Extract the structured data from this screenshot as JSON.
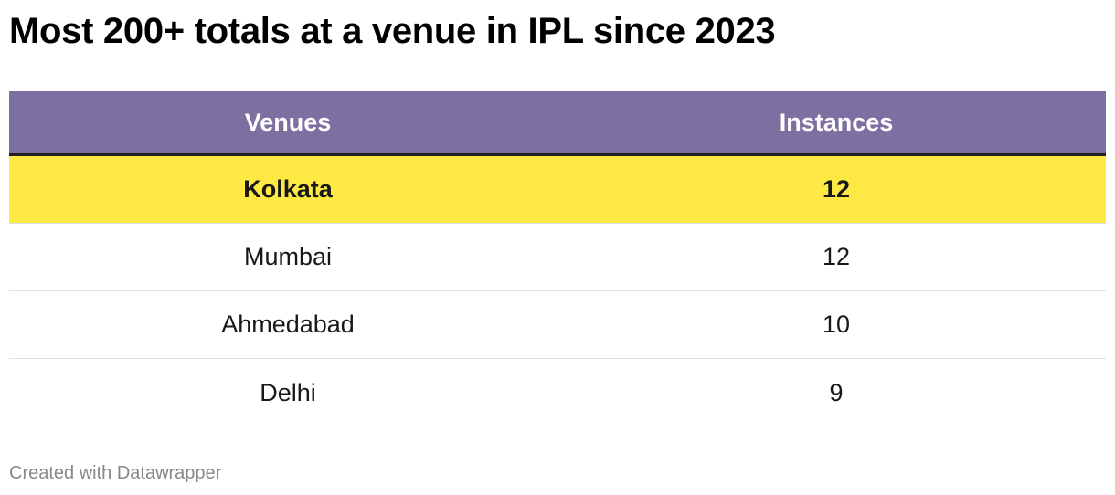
{
  "title": "Most 200+ totals at a venue in IPL since 2023",
  "colors": {
    "header_bg": "#7d70a1",
    "header_text": "#ffffff",
    "highlight_bg": "#fee843"
  },
  "chart_data": {
    "type": "table",
    "title": "Most 200+ totals at a venue in IPL since 2023",
    "columns": [
      "Venues",
      "Instances"
    ],
    "rows": [
      {
        "venue": "Kolkata",
        "instances": "12",
        "highlight": true
      },
      {
        "venue": "Mumbai",
        "instances": "12",
        "highlight": false
      },
      {
        "venue": "Ahmedabad",
        "instances": "10",
        "highlight": false
      },
      {
        "venue": "Delhi",
        "instances": "9",
        "highlight": false
      }
    ]
  },
  "footer": "Created with Datawrapper"
}
